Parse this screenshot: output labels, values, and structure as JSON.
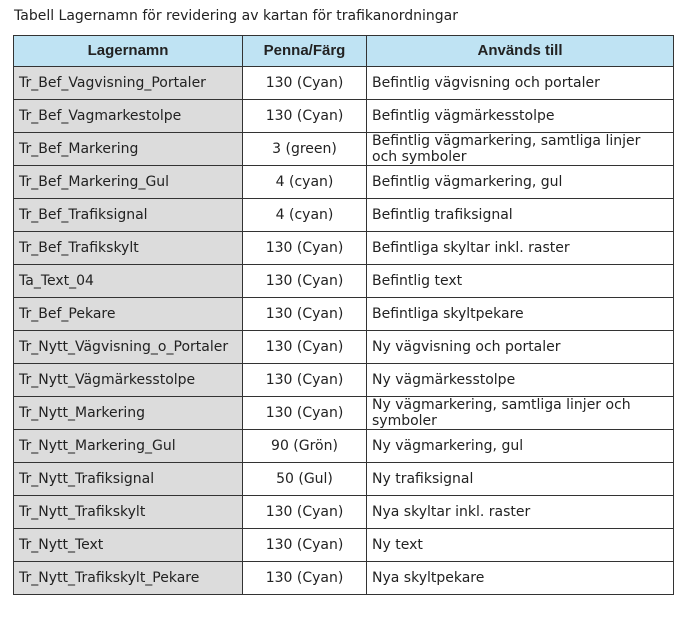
{
  "caption": "Tabell Lagernamn för revidering av kartan för trafikanordningar",
  "table": {
    "header": [
      "Lagernamn",
      "Penna/Färg",
      "Används till"
    ],
    "rows": [
      [
        "Tr_Bef_Vagvisning_Portaler",
        "130 (Cyan)",
        "Befintlig vägvisning och portaler"
      ],
      [
        "Tr_Bef_Vagmarkestolpe",
        "130 (Cyan)",
        "Befintlig vägmärkesstolpe"
      ],
      [
        "Tr_Bef_Markering",
        "3 (green)",
        "Befintlig vägmarkering, samtliga linjer och symboler"
      ],
      [
        "Tr_Bef_Markering_Gul",
        "4 (cyan)",
        "Befintlig vägmarkering, gul"
      ],
      [
        "Tr_Bef_Trafiksignal",
        "4 (cyan)",
        "Befintlig trafiksignal"
      ],
      [
        "Tr_Bef_Trafikskylt",
        "130 (Cyan)",
        "Befintliga skyltar inkl. raster"
      ],
      [
        "Ta_Text_04",
        "130 (Cyan)",
        "Befintlig text"
      ],
      [
        "Tr_Bef_Pekare",
        "130 (Cyan)",
        "Befintliga skyltpekare"
      ],
      [
        "Tr_Nytt_Vägvisning_o_Portaler",
        "130 (Cyan)",
        "Ny vägvisning och portaler"
      ],
      [
        "Tr_Nytt_Vägmärkesstolpe",
        "130 (Cyan)",
        "Ny vägmärkesstolpe"
      ],
      [
        "Tr_Nytt_Markering",
        "130 (Cyan)",
        "Ny vägmarkering, samtliga linjer och symboler"
      ],
      [
        "Tr_Nytt_Markering_Gul",
        "90 (Grön)",
        "Ny vägmarkering, gul"
      ],
      [
        "Tr_Nytt_Trafiksignal",
        "50 (Gul)",
        "Ny trafiksignal"
      ],
      [
        "Tr_Nytt_Trafikskylt",
        "130 (Cyan)",
        "Nya skyltar inkl. raster"
      ],
      [
        "Tr_Nytt_Text",
        "130 (Cyan)",
        "Ny text"
      ],
      [
        "Tr_Nytt_Trafikskylt_Pekare",
        "130 (Cyan)",
        "Nya skyltpekare"
      ]
    ]
  }
}
